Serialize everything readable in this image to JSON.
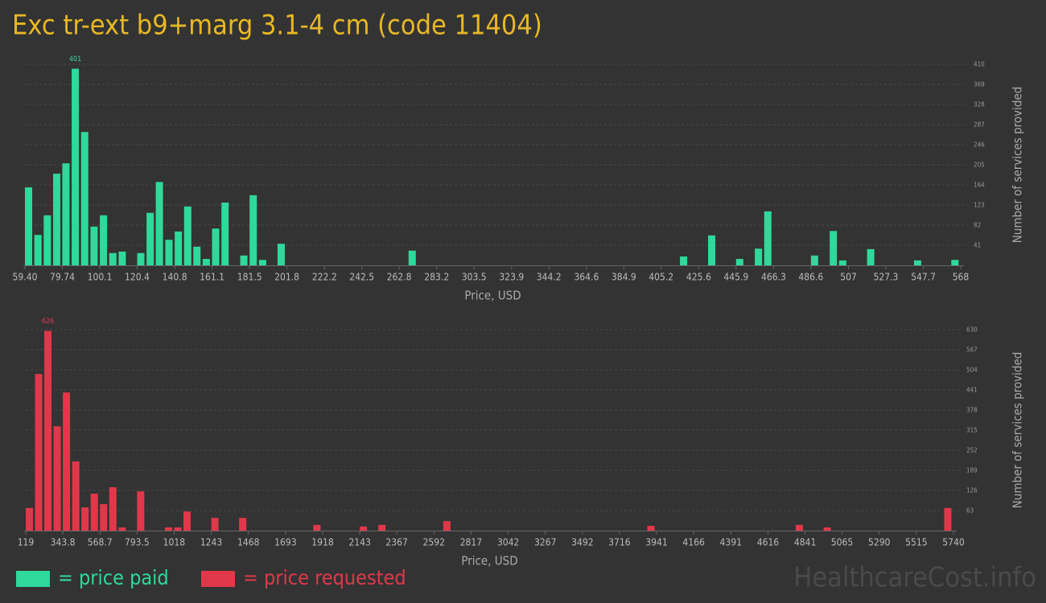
{
  "title": "Exc tr-ext b9+marg 3.1-4 cm (code 11404)",
  "watermark": "HealthcareCost.info",
  "chart_data": [
    {
      "type": "bar",
      "xlabel": "Price, USD",
      "ylabel": "Number of services provided",
      "grid": true,
      "x": [
        59.4,
        64.5,
        69.6,
        74.7,
        79.7,
        84.8,
        89.9,
        95.0,
        100.1,
        105.2,
        110.3,
        120.4,
        125.5,
        130.5,
        135.7,
        140.8,
        145.9,
        150.9,
        156.0,
        161.1,
        166.2,
        176.4,
        181.5,
        186.6,
        196.7,
        267.9,
        415.4,
        430.7,
        445.9,
        456.1,
        461.2,
        486.6,
        496.8,
        501.9,
        517.1,
        542.6,
        562.9
      ],
      "series": [
        {
          "name": "= price paid",
          "color": "#2fd99b",
          "values": [
            159,
            62,
            102,
            187,
            208,
            401,
            272,
            79,
            102,
            25,
            28,
            25,
            107,
            170,
            52,
            69,
            120,
            38,
            13,
            75,
            128,
            20,
            143,
            11,
            44,
            30,
            18,
            61,
            13,
            34,
            110,
            20,
            70,
            10,
            33,
            10,
            11
          ]
        }
      ],
      "xlim": [
        59.4,
        568
      ],
      "xticks": [
        {
          "value": 59.4,
          "label": "59.40"
        },
        79.74,
        100.1,
        120.4,
        140.8,
        161.1,
        181.5,
        201.8,
        222.2,
        242.5,
        262.8,
        283.2,
        303.5,
        323.9,
        344.2,
        364.6,
        384.9,
        405.2,
        425.6,
        445.9,
        466.3,
        486.6,
        507,
        527.3,
        547.7,
        568
      ],
      "ylim": [
        0,
        410
      ],
      "yticks": [
        41,
        82,
        123,
        164,
        205,
        246,
        287,
        328,
        369,
        410
      ]
    },
    {
      "type": "bar",
      "xlabel": "Price, USD",
      "ylabel": "Number of services provided",
      "grid": true,
      "x": [
        119,
        175.2,
        231.4,
        287.6,
        343.8,
        400.1,
        456.3,
        512.5,
        568.7,
        624.9,
        681.1,
        793.5,
        962.2,
        1018.4,
        1074.6,
        1243.2,
        1411.8,
        1861.5,
        2142.6,
        2255.0,
        2648.5,
        3885.1,
        4784.4,
        4953.1,
        5683.8
      ],
      "series": [
        {
          "name": "= price requested",
          "color": "#e0384a",
          "values": [
            71,
            491,
            626,
            327,
            433,
            217,
            73,
            116,
            83,
            136,
            10,
            123,
            10,
            10,
            60,
            40,
            40,
            18,
            13,
            18,
            30,
            15,
            18,
            10,
            71
          ]
        }
      ],
      "xlim": [
        119,
        5740
      ],
      "xticks": [
        119,
        343.8,
        568.7,
        793.5,
        1018,
        1243,
        1468,
        1693,
        1918,
        2143,
        2367,
        2592,
        2817,
        3042,
        3267,
        3492,
        3716,
        3941,
        4166,
        4391,
        4616,
        4841,
        5065,
        5290,
        5515,
        5740
      ],
      "ylim": [
        0,
        630
      ],
      "yticks": [
        63,
        126,
        189,
        252,
        315,
        378,
        441,
        504,
        567,
        630
      ]
    }
  ]
}
